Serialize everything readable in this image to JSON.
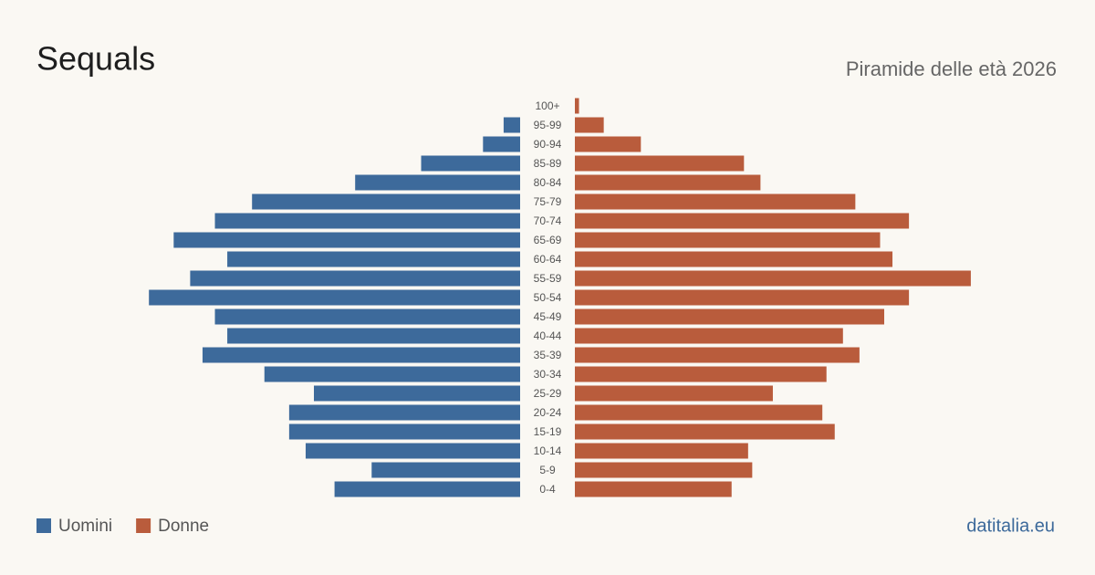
{
  "chart_data": {
    "type": "pyramid",
    "title": "Sequals",
    "subtitle": "Piramide delle età 2026",
    "source": "datitalia.eu",
    "categories": [
      "100+",
      "95-99",
      "90-94",
      "85-89",
      "80-84",
      "75-79",
      "70-74",
      "65-69",
      "60-64",
      "55-59",
      "50-54",
      "45-49",
      "40-44",
      "35-39",
      "30-34",
      "25-29",
      "20-24",
      "15-19",
      "10-14",
      "5-9",
      "0-4"
    ],
    "series": [
      {
        "name": "Uomini",
        "color": "#3d6a9b",
        "values": [
          0,
          4,
          9,
          24,
          40,
          65,
          74,
          84,
          71,
          80,
          90,
          74,
          71,
          77,
          62,
          50,
          56,
          56,
          52,
          36,
          45
        ]
      },
      {
        "name": "Donne",
        "color": "#b95c3c",
        "values": [
          1,
          7,
          16,
          41,
          45,
          68,
          81,
          74,
          77,
          96,
          81,
          75,
          65,
          69,
          61,
          48,
          60,
          63,
          42,
          43,
          38
        ]
      }
    ],
    "xlim": [
      0,
      100
    ]
  }
}
